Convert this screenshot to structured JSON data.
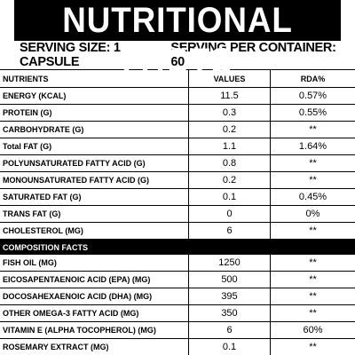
{
  "header": {
    "title": "NUTRITIONAL FACTS"
  },
  "serving": {
    "size": "SERVING SIZE: 1 CAPSULE",
    "per_container": "SERVING PER CONTAINER: 60"
  },
  "table": {
    "columns": [
      "NUTRIENTS",
      "VALUES",
      "RDA%"
    ],
    "rows": [
      [
        "ENERGY (KCAL)",
        "11.5",
        "0.57%"
      ],
      [
        "PROTEIN (G)",
        "0.3",
        "0.55%"
      ],
      [
        "CARBOHYDRATE (G)",
        "0.2",
        "**"
      ],
      [
        "Total FAT (G)",
        "1.1",
        "1.64%"
      ],
      [
        "POLYUNSATURATED FATTY ACID (G)",
        "0.8",
        "**"
      ],
      [
        "MONOUNSATURATED FATTY ACID (G)",
        "0.2",
        "**"
      ],
      [
        "SATURATED FAT (G)",
        "0.1",
        "0.45%"
      ],
      [
        "TRANS FAT (G)",
        "0",
        "0%"
      ],
      [
        "CHOLESTEROL (MG)",
        "6",
        "**"
      ]
    ],
    "section_label": "COMPOSITION FACTS",
    "composition_rows": [
      [
        "FISH OIL (MG)",
        "1250",
        "**"
      ],
      [
        "EICOSAPENTAENOIC ACID (EPA) (MG)",
        "500",
        "**"
      ],
      [
        "DOCOSAHEXAENOIC ACID (DHA) (MG)",
        "395",
        "**"
      ],
      [
        "OTHER OMEGA-3 FATTY ACID (MG)",
        "350",
        "**"
      ],
      [
        "VITAMIN E (ALPHA TOCOPHEROL) (MG)",
        "6",
        "60%"
      ],
      [
        "ROSEMARY EXTRACT (MG)",
        "0.1",
        "**"
      ]
    ]
  }
}
